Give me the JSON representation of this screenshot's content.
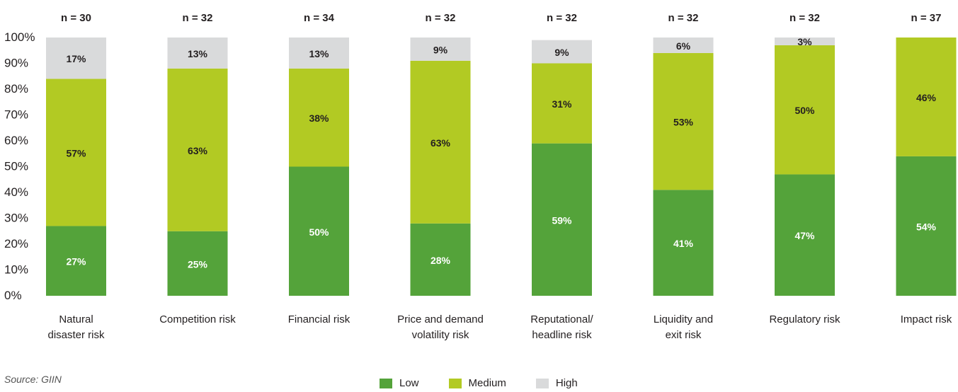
{
  "chart_data": {
    "type": "bar",
    "stacked": true,
    "orientation": "vertical",
    "categories": [
      "Natural\ndisaster risk",
      "Competition risk",
      "Financial risk",
      "Price and demand\nvolatility risk",
      "Reputational/\nheadline risk",
      "Liquidity and\nexit risk",
      "Regulatory risk",
      "Impact risk"
    ],
    "sample_sizes": [
      "n = 30",
      "n = 32",
      "n = 34",
      "n = 32",
      "n = 32",
      "n = 32",
      "n = 32",
      "n = 37"
    ],
    "series": [
      {
        "name": "Low",
        "color": "#54a33a",
        "values": [
          27,
          25,
          50,
          28,
          59,
          41,
          47,
          54
        ],
        "labels": [
          "27%",
          "25%",
          "50%",
          "28%",
          "59%",
          "41%",
          "47%",
          "54%"
        ]
      },
      {
        "name": "Medium",
        "color": "#b2ca23",
        "values": [
          57,
          63,
          38,
          63,
          31,
          53,
          50,
          46
        ],
        "labels": [
          "57%",
          "63%",
          "38%",
          "63%",
          "31%",
          "53%",
          "50%",
          "46%"
        ]
      },
      {
        "name": "High",
        "color": "#d9dadb",
        "values": [
          17,
          13,
          13,
          9,
          9,
          6,
          3,
          0
        ],
        "labels": [
          "17%",
          "13%",
          "13%",
          "9%",
          "9%",
          "6%",
          "3%",
          ""
        ]
      }
    ],
    "yticks": [
      "0%",
      "10%",
      "20%",
      "30%",
      "40%",
      "50%",
      "60%",
      "70%",
      "80%",
      "90%",
      "100%"
    ],
    "ylim": [
      0,
      100
    ],
    "legend_position": "bottom",
    "grid": false
  },
  "source": "Source: GIIN",
  "legend": [
    {
      "label": "Low",
      "color": "#54a33a"
    },
    {
      "label": "Medium",
      "color": "#b2ca23"
    },
    {
      "label": "High",
      "color": "#d9dadb"
    }
  ]
}
